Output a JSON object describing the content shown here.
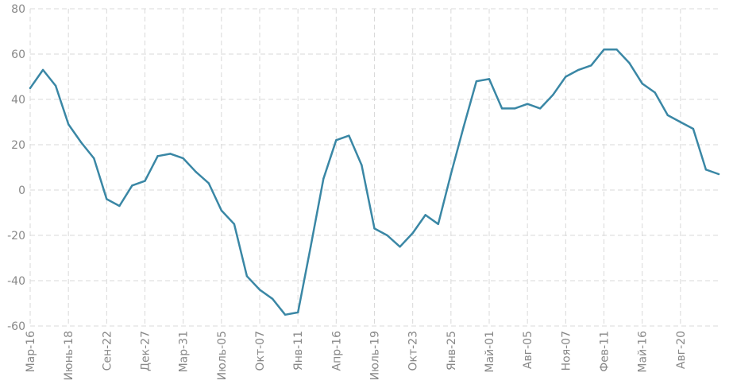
{
  "chart_data": {
    "type": "line",
    "title": "",
    "xlabel": "",
    "ylabel": "",
    "ylim": [
      -60,
      80
    ],
    "yticks": [
      -60,
      -40,
      -20,
      0,
      20,
      40,
      60,
      80
    ],
    "xtick_labels": [
      "Мар-16",
      "Июнь-18",
      "Сен-22",
      "Дек-27",
      "Мар-31",
      "Июль-05",
      "Окт-07",
      "Янв-11",
      "Апр-16",
      "Июль-19",
      "Окт-23",
      "Янв-25",
      "Май-01",
      "Авг-05",
      "Ноя-07",
      "Фев-11",
      "Май-16",
      "Авг-20"
    ],
    "grid": true,
    "legend": "none",
    "colors": {
      "series": "#3a87a5",
      "grid": "#d9d9d9",
      "tick_text": "#888888"
    },
    "series": [
      {
        "values": [
          45,
          53,
          46,
          29,
          21,
          14,
          -4,
          -7,
          2,
          4,
          15,
          16,
          14,
          8,
          3,
          -9,
          -15,
          -38,
          -44,
          -48,
          -55,
          -54,
          -25,
          5,
          22,
          24,
          11,
          -17,
          -20,
          -25,
          -19,
          -11,
          -15,
          7,
          28,
          48,
          49,
          36,
          36,
          38,
          36,
          42,
          50,
          53,
          55,
          62,
          62,
          56,
          47,
          43,
          33,
          30,
          27,
          9,
          7
        ]
      }
    ]
  }
}
